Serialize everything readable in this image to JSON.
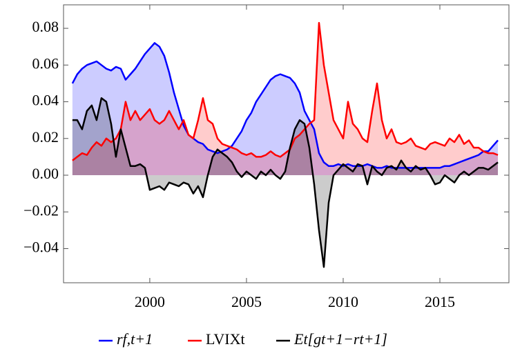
{
  "chart_data": {
    "type": "area-line",
    "x": [
      1996,
      1996.25,
      1996.5,
      1996.75,
      1997,
      1997.25,
      1997.5,
      1997.75,
      1998,
      1998.25,
      1998.5,
      1998.75,
      1999,
      1999.25,
      1999.5,
      1999.75,
      2000,
      2000.25,
      2000.5,
      2000.75,
      2001,
      2001.25,
      2001.5,
      2001.75,
      2002,
      2002.25,
      2002.5,
      2002.75,
      2003,
      2003.25,
      2003.5,
      2003.75,
      2004,
      2004.25,
      2004.5,
      2004.75,
      2005,
      2005.25,
      2005.5,
      2005.75,
      2006,
      2006.25,
      2006.5,
      2006.75,
      2007,
      2007.25,
      2007.5,
      2007.75,
      2008,
      2008.25,
      2008.5,
      2008.75,
      2009,
      2009.25,
      2009.5,
      2009.75,
      2010,
      2010.25,
      2010.5,
      2010.75,
      2011,
      2011.25,
      2011.5,
      2011.75,
      2012,
      2012.25,
      2012.5,
      2012.75,
      2013,
      2013.25,
      2013.5,
      2013.75,
      2014,
      2014.25,
      2014.5,
      2014.75,
      2015,
      2015.25,
      2015.5,
      2015.75,
      2016,
      2016.25,
      2016.5,
      2016.75,
      2017,
      2017.25,
      2017.5,
      2017.75,
      2018
    ],
    "series": [
      {
        "name": "rf,t+1",
        "color": "#0000ff",
        "fill": "rgba(0,0,255,0.2)",
        "values": [
          0.05,
          0.055,
          0.058,
          0.06,
          0.061,
          0.062,
          0.06,
          0.058,
          0.057,
          0.059,
          0.058,
          0.052,
          0.055,
          0.058,
          0.062,
          0.066,
          0.069,
          0.072,
          0.07,
          0.065,
          0.056,
          0.045,
          0.036,
          0.027,
          0.022,
          0.02,
          0.018,
          0.017,
          0.014,
          0.013,
          0.012,
          0.013,
          0.014,
          0.016,
          0.02,
          0.024,
          0.03,
          0.034,
          0.04,
          0.044,
          0.048,
          0.052,
          0.054,
          0.055,
          0.054,
          0.053,
          0.05,
          0.045,
          0.035,
          0.03,
          0.025,
          0.012,
          0.007,
          0.005,
          0.005,
          0.006,
          0.005,
          0.006,
          0.005,
          0.005,
          0.005,
          0.006,
          0.005,
          0.004,
          0.004,
          0.005,
          0.004,
          0.004,
          0.004,
          0.004,
          0.004,
          0.004,
          0.004,
          0.004,
          0.004,
          0.004,
          0.004,
          0.005,
          0.005,
          0.006,
          0.007,
          0.008,
          0.009,
          0.01,
          0.011,
          0.013,
          0.013,
          0.016,
          0.019
        ]
      },
      {
        "name": "LVIXt",
        "color": "#ff0000",
        "fill": "rgba(255,0,0,0.2)",
        "values": [
          0.008,
          0.01,
          0.012,
          0.011,
          0.015,
          0.018,
          0.016,
          0.02,
          0.018,
          0.02,
          0.025,
          0.04,
          0.03,
          0.035,
          0.03,
          0.033,
          0.036,
          0.03,
          0.028,
          0.03,
          0.035,
          0.03,
          0.025,
          0.03,
          0.022,
          0.02,
          0.03,
          0.042,
          0.03,
          0.028,
          0.02,
          0.017,
          0.016,
          0.015,
          0.014,
          0.012,
          0.011,
          0.012,
          0.01,
          0.01,
          0.011,
          0.013,
          0.011,
          0.01,
          0.012,
          0.014,
          0.02,
          0.022,
          0.025,
          0.028,
          0.03,
          0.083,
          0.06,
          0.045,
          0.03,
          0.025,
          0.02,
          0.04,
          0.028,
          0.025,
          0.02,
          0.018,
          0.035,
          0.05,
          0.03,
          0.02,
          0.025,
          0.018,
          0.017,
          0.018,
          0.02,
          0.016,
          0.015,
          0.014,
          0.017,
          0.018,
          0.017,
          0.016,
          0.02,
          0.018,
          0.022,
          0.017,
          0.019,
          0.015,
          0.015,
          0.013,
          0.012,
          0.012,
          0.011
        ]
      },
      {
        "name": "Et[gt+1−rt+1]",
        "color": "#000000",
        "fill": "rgba(0,0,0,0.2)",
        "values": [
          0.03,
          0.03,
          0.025,
          0.035,
          0.038,
          0.03,
          0.042,
          0.04,
          0.028,
          0.01,
          0.025,
          0.015,
          0.005,
          0.005,
          0.006,
          0.004,
          -0.008,
          -0.007,
          -0.006,
          -0.008,
          -0.004,
          -0.005,
          -0.006,
          -0.004,
          -0.005,
          -0.01,
          -0.006,
          -0.012,
          0.0,
          0.01,
          0.014,
          0.012,
          0.01,
          0.007,
          0.002,
          -0.001,
          0.002,
          0.0,
          -0.002,
          0.002,
          0.0,
          0.003,
          0.0,
          -0.002,
          0.002,
          0.015,
          0.025,
          0.03,
          0.028,
          0.015,
          -0.005,
          -0.03,
          -0.05,
          -0.015,
          0.0,
          0.003,
          0.006,
          0.004,
          0.002,
          0.006,
          0.005,
          -0.005,
          0.005,
          0.002,
          0.0,
          0.004,
          0.005,
          0.003,
          0.008,
          0.004,
          0.002,
          0.005,
          0.003,
          0.004,
          0.0,
          -0.005,
          -0.004,
          0.0,
          -0.002,
          -0.004,
          0.0,
          0.002,
          0.0,
          0.002,
          0.004,
          0.004,
          0.003,
          0.005,
          0.007
        ]
      }
    ],
    "xlim": [
      1995.54,
      2018.57
    ],
    "ylim": [
      -0.0586,
      0.0928
    ],
    "xticks": [
      2000,
      2005,
      2010,
      2015
    ],
    "yticks": [
      {
        "value": -0.04,
        "label": "−0.04"
      },
      {
        "value": -0.02,
        "label": "−0.02"
      },
      {
        "value": 0,
        "label": "0.00"
      },
      {
        "value": 0.02,
        "label": "0.02"
      },
      {
        "value": 0.04,
        "label": "0.04"
      },
      {
        "value": 0.06,
        "label": "0.06"
      },
      {
        "value": 0.08,
        "label": "0.08"
      }
    ],
    "legend": "bottom"
  }
}
